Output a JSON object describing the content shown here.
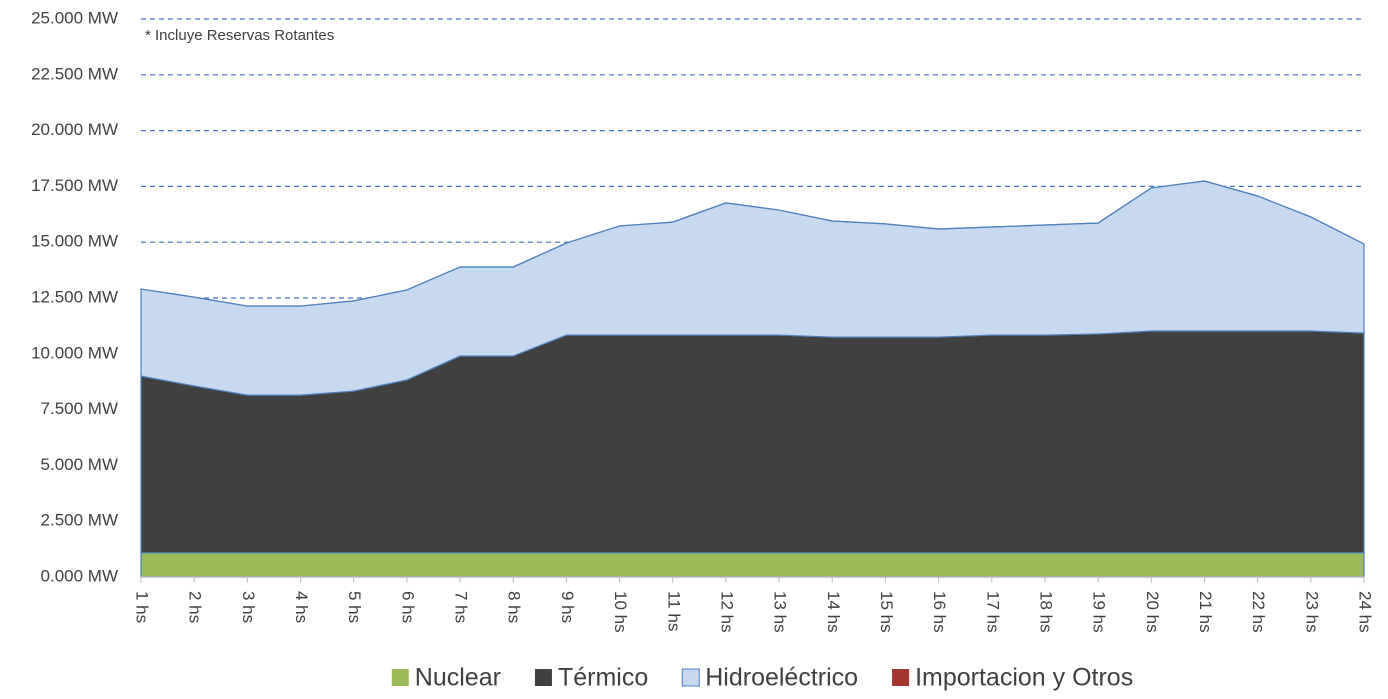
{
  "chart_data": {
    "type": "stacked_area",
    "annotation": "* Incluye Reservas Rotantes",
    "categories": [
      "1 hs",
      "2 hs",
      "3 hs",
      "4 hs",
      "5 hs",
      "6 hs",
      "7 hs",
      "8 hs",
      "9 hs",
      "10 hs",
      "11 hs",
      "12 hs",
      "13 hs",
      "14 hs",
      "15 hs",
      "16 hs",
      "17 hs",
      "18 hs",
      "19 hs",
      "20 hs",
      "21 hs",
      "22 hs",
      "23 hs",
      "24 hs"
    ],
    "series": [
      {
        "name": "Nuclear",
        "color": "#9bbb59",
        "values": [
          1080,
          1080,
          1080,
          1080,
          1080,
          1080,
          1080,
          1080,
          1080,
          1080,
          1080,
          1080,
          1080,
          1080,
          1080,
          1080,
          1080,
          1080,
          1080,
          1080,
          1080,
          1080,
          1080,
          1080
        ]
      },
      {
        "name": "Térmico",
        "color": "#404040",
        "values": [
          7920,
          7480,
          7070,
          7070,
          7250,
          7750,
          8820,
          8820,
          9760,
          9760,
          9760,
          9760,
          9760,
          9670,
          9670,
          9670,
          9760,
          9760,
          9810,
          9940,
          9940,
          9940,
          9940,
          9850
        ]
      },
      {
        "name": "Hidroeléctrico",
        "color": "#c6d9f1",
        "values": [
          3900,
          3980,
          3990,
          3990,
          4040,
          4030,
          3990,
          3990,
          4120,
          4890,
          5060,
          5920,
          5600,
          5200,
          5070,
          4840,
          4840,
          4930,
          4970,
          6410,
          6720,
          6050,
          5110,
          3990
        ]
      },
      {
        "name": "Importacion y Otros",
        "color": "#a5352f",
        "values": [
          0,
          0,
          0,
          0,
          0,
          0,
          0,
          0,
          0,
          0,
          0,
          0,
          0,
          0,
          0,
          0,
          0,
          0,
          0,
          0,
          0,
          0,
          0,
          0
        ]
      }
    ],
    "ylim": [
      0,
      25000
    ],
    "yticks": [
      {
        "value": 0,
        "label": "0.000 MW"
      },
      {
        "value": 2500,
        "label": "2.500 MW"
      },
      {
        "value": 5000,
        "label": "5.000 MW"
      },
      {
        "value": 7500,
        "label": "7.500 MW"
      },
      {
        "value": 10000,
        "label": "10.000 MW"
      },
      {
        "value": 12500,
        "label": "12.500 MW"
      },
      {
        "value": 15000,
        "label": "15.000 MW"
      },
      {
        "value": 17500,
        "label": "17.500 MW"
      },
      {
        "value": 20000,
        "label": "20.000 MW"
      },
      {
        "value": 22500,
        "label": "22.500 MW"
      },
      {
        "value": 25000,
        "label": "25.000 MW"
      }
    ],
    "grid": true,
    "outline_color": "#4f81bd",
    "grid_color": "#4472c4",
    "legend": "bottom"
  }
}
